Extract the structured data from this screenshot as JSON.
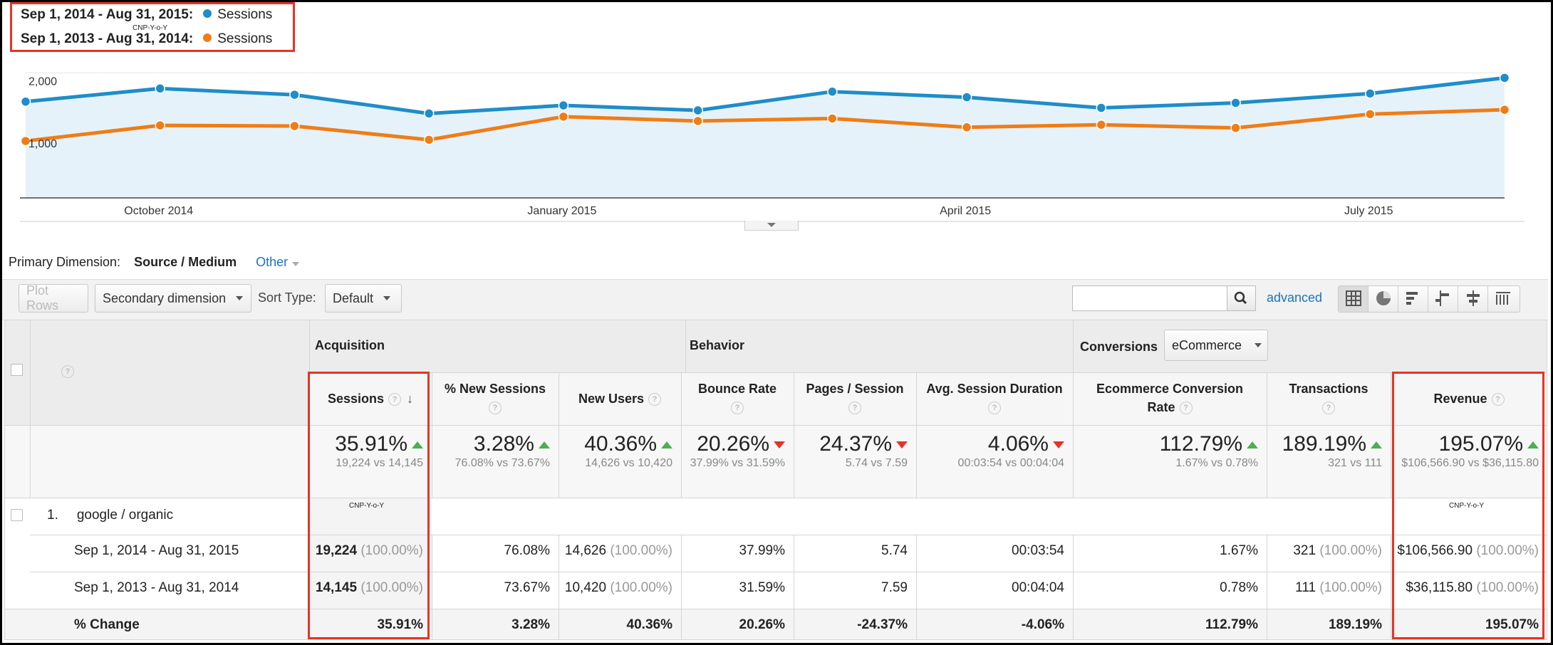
{
  "legend": {
    "series1_range": "Sep 1, 2014 - Aug 31, 2015:",
    "series2_range": "Sep 1, 2013 - Aug 31, 2014:",
    "series_name": "Sessions",
    "annotation": "CNP-Y-o-Y"
  },
  "colors": {
    "series1": "#1f8dc9",
    "series2": "#ef7d17",
    "red": "#e53424",
    "link": "#1a73c4"
  },
  "chart_data": {
    "type": "line",
    "x": [
      "Sep 2014",
      "Oct 2014",
      "Nov 2014",
      "Dec 2014",
      "Jan 2015",
      "Feb 2015",
      "Mar 2015",
      "Apr 2015",
      "May 2015",
      "Jun 2015",
      "Jul 2015",
      "Aug 2015"
    ],
    "xticks": [
      "October 2014",
      "January 2015",
      "April 2015",
      "July 2015"
    ],
    "yticks": [
      "2,000",
      "1,000"
    ],
    "ylim": [
      0,
      2300
    ],
    "series": [
      {
        "name": "Sep 1, 2014 - Aug 31, 2015",
        "values": [
          1540,
          1750,
          1650,
          1350,
          1480,
          1400,
          1700,
          1610,
          1440,
          1520,
          1670,
          1920
        ]
      },
      {
        "name": "Sep 1, 2013 - Aug 31, 2014",
        "values": [
          910,
          1160,
          1150,
          930,
          1300,
          1230,
          1270,
          1130,
          1170,
          1120,
          1340,
          1410
        ]
      }
    ]
  },
  "primary_dimension": {
    "label": "Primary Dimension:",
    "value": "Source / Medium",
    "other": "Other"
  },
  "toolbar": {
    "plot_rows": "Plot Rows",
    "secondary": "Secondary dimension",
    "sort_label": "Sort Type:",
    "sort_value": "Default",
    "advanced": "advanced"
  },
  "view_icons": [
    "table-icon",
    "pie-icon",
    "bar-icon",
    "compare-icon",
    "term-cloud-icon",
    "pivot-icon"
  ],
  "table": {
    "dim_header": "Source / Medium",
    "groups": {
      "acquisition": "Acquisition",
      "behavior": "Behavior",
      "conversions": "Conversions",
      "conv_select": "eCommerce"
    },
    "columns": [
      "Sessions",
      "% New Sessions",
      "New Users",
      "Bounce Rate",
      "Pages / Session",
      "Avg. Session Duration",
      "Ecommerce Conversion Rate",
      "Transactions",
      "Revenue"
    ],
    "summary": [
      {
        "pct": "35.91%",
        "dir": "up",
        "sub": "19,224 vs 14,145"
      },
      {
        "pct": "3.28%",
        "dir": "up",
        "sub": "76.08% vs 73.67%"
      },
      {
        "pct": "40.36%",
        "dir": "up",
        "sub": "14,626 vs 10,420"
      },
      {
        "pct": "20.26%",
        "dir": "down",
        "sub": "37.99% vs 31.59%"
      },
      {
        "pct": "24.37%",
        "dir": "down",
        "sub": "5.74 vs 7.59"
      },
      {
        "pct": "4.06%",
        "dir": "down",
        "sub": "00:03:54 vs 00:04:04"
      },
      {
        "pct": "112.79%",
        "dir": "up",
        "sub": "1.67% vs 0.78%"
      },
      {
        "pct": "189.19%",
        "dir": "up",
        "sub": "321 vs 111"
      },
      {
        "pct": "195.07%",
        "dir": "up",
        "sub": "$106,566.90 vs $36,115.80"
      }
    ],
    "row1": {
      "index": "1.",
      "label": "google / organic"
    },
    "rows": [
      {
        "label": "Sep 1, 2014 - Aug 31, 2015",
        "cells": [
          {
            "v": "19,224",
            "p": "(100.00%)"
          },
          {
            "v": "76.08%",
            "p": ""
          },
          {
            "v": "14,626",
            "p": "(100.00%)"
          },
          {
            "v": "37.99%",
            "p": ""
          },
          {
            "v": "5.74",
            "p": ""
          },
          {
            "v": "00:03:54",
            "p": ""
          },
          {
            "v": "1.67%",
            "p": ""
          },
          {
            "v": "321",
            "p": "(100.00%)"
          },
          {
            "v": "$106,566.90",
            "p": "(100.00%)"
          }
        ]
      },
      {
        "label": "Sep 1, 2013 - Aug 31, 2014",
        "cells": [
          {
            "v": "14,145",
            "p": "(100.00%)"
          },
          {
            "v": "73.67%",
            "p": ""
          },
          {
            "v": "10,420",
            "p": "(100.00%)"
          },
          {
            "v": "31.59%",
            "p": ""
          },
          {
            "v": "7.59",
            "p": ""
          },
          {
            "v": "00:04:04",
            "p": ""
          },
          {
            "v": "0.78%",
            "p": ""
          },
          {
            "v": "111",
            "p": "(100.00%)"
          },
          {
            "v": "$36,115.80",
            "p": "(100.00%)"
          }
        ]
      },
      {
        "label": "% Change",
        "cells": [
          {
            "v": "35.91%",
            "p": ""
          },
          {
            "v": "3.28%",
            "p": ""
          },
          {
            "v": "40.36%",
            "p": ""
          },
          {
            "v": "20.26%",
            "p": ""
          },
          {
            "v": "-24.37%",
            "p": ""
          },
          {
            "v": "-4.06%",
            "p": ""
          },
          {
            "v": "112.79%",
            "p": ""
          },
          {
            "v": "189.19%",
            "p": ""
          },
          {
            "v": "195.07%",
            "p": ""
          }
        ]
      }
    ]
  }
}
